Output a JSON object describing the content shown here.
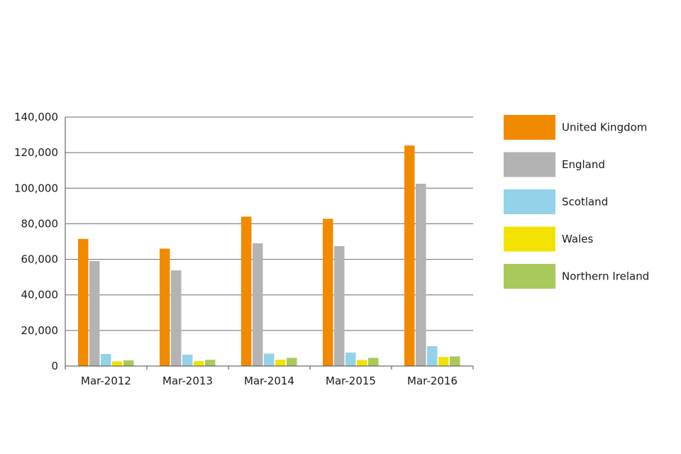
{
  "chart_data": {
    "type": "bar",
    "title": "",
    "xlabel": "",
    "ylabel": "",
    "categories": [
      "Mar-2012",
      "Mar-2013",
      "Mar-2014",
      "Mar-2015",
      "Mar-2016"
    ],
    "ylim": [
      0,
      140000
    ],
    "yticks": [
      0,
      20000,
      40000,
      60000,
      80000,
      100000,
      120000,
      140000
    ],
    "ytick_labels": [
      "0",
      "20,000",
      "40,000",
      "60,000",
      "80,000",
      "100,000",
      "120,000",
      "140,000"
    ],
    "grid": true,
    "legend_position": "right",
    "series": [
      {
        "name": "United Kingdom",
        "color": "#F28A00",
        "values": [
          71500,
          66000,
          84000,
          82800,
          124000
        ]
      },
      {
        "name": "England",
        "color": "#B3B3B3",
        "values": [
          59000,
          53800,
          69000,
          67400,
          102500
        ]
      },
      {
        "name": "Scotland",
        "color": "#93D2E8",
        "values": [
          6800,
          6400,
          7000,
          7600,
          11200
        ]
      },
      {
        "name": "Wales",
        "color": "#F2E200",
        "values": [
          2600,
          2800,
          3500,
          3400,
          5100
        ]
      },
      {
        "name": "Northern Ireland",
        "color": "#A9C95A",
        "values": [
          3200,
          3500,
          4600,
          4600,
          5400
        ]
      }
    ]
  }
}
